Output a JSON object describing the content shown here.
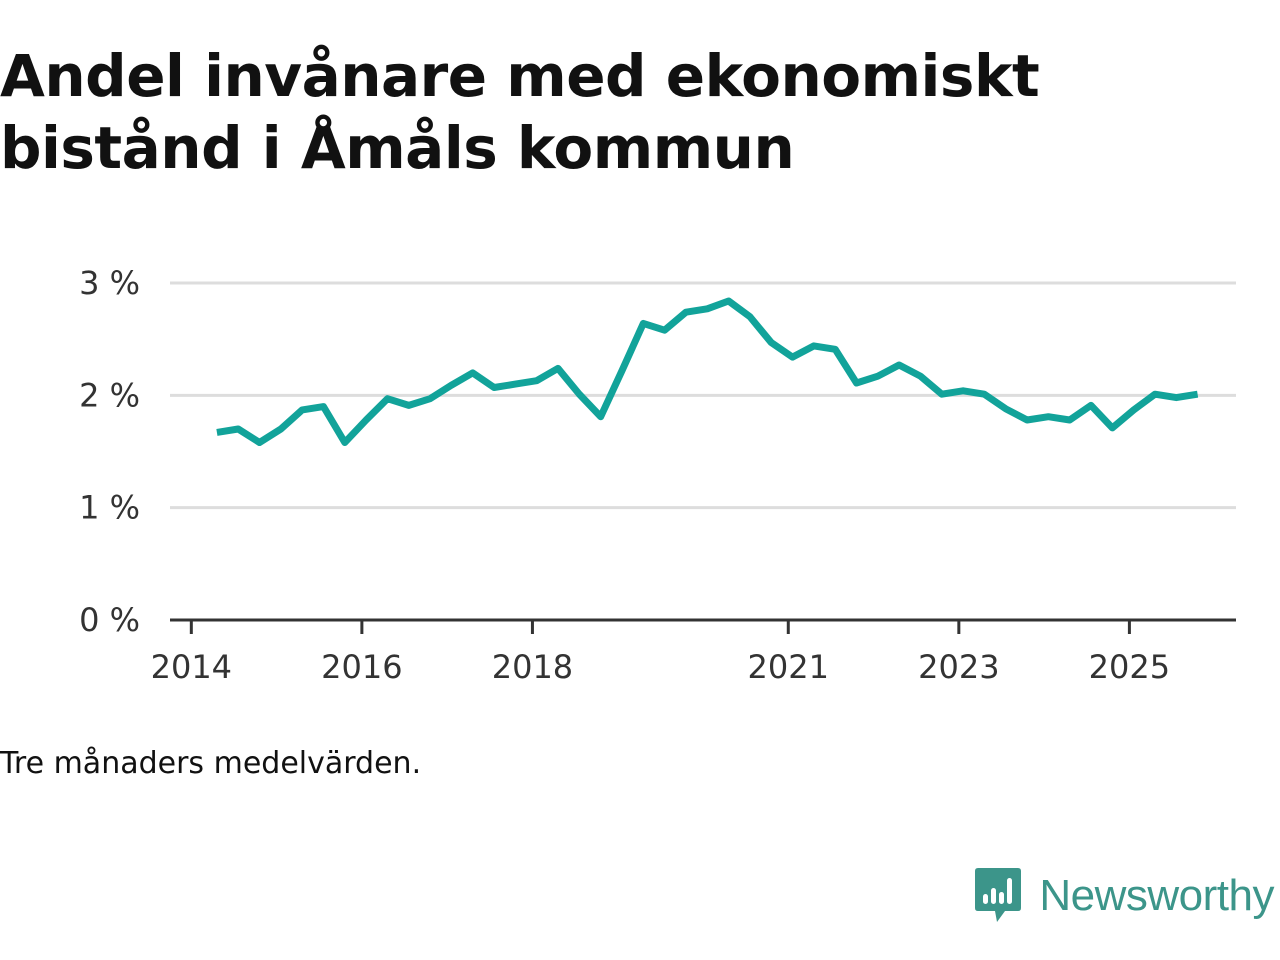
{
  "title": "Andel invånare med ekonomiskt bistånd i Åmåls kommun",
  "note": "Tre månaders medelvärden.",
  "brand": {
    "name": "Newsworthy",
    "icon": "newsworthy-logo-icon",
    "color": "#3c958a"
  },
  "colors": {
    "line": "#12a39a",
    "grid": "#dddddd",
    "axis": "#333333"
  },
  "chart_data": {
    "type": "line",
    "title": "Andel invånare med ekonomiskt bistånd i Åmåls kommun",
    "xlabel": "",
    "ylabel": "",
    "y_unit": "%",
    "ylim": [
      0,
      3
    ],
    "yticks": [
      {
        "value": 0,
        "label": "0 %"
      },
      {
        "value": 1,
        "label": "1 %"
      },
      {
        "value": 2,
        "label": "2 %"
      },
      {
        "value": 3,
        "label": "3 %"
      }
    ],
    "xlim": [
      2013.75,
      2026.25
    ],
    "xticks": [
      {
        "value": 2014,
        "label": "2014"
      },
      {
        "value": 2016,
        "label": "2016"
      },
      {
        "value": 2018,
        "label": "2018"
      },
      {
        "value": 2021,
        "label": "2021"
      },
      {
        "value": 2023,
        "label": "2023"
      },
      {
        "value": 2025,
        "label": "2025"
      }
    ],
    "grid": true,
    "series": [
      {
        "name": "Andel invånare med ekonomiskt bistånd",
        "x": [
          2014.3,
          2014.55,
          2014.8,
          2015.05,
          2015.3,
          2015.55,
          2015.8,
          2016.05,
          2016.3,
          2016.55,
          2016.8,
          2017.05,
          2017.3,
          2017.55,
          2017.8,
          2018.05,
          2018.3,
          2018.55,
          2018.8,
          2019.05,
          2019.3,
          2019.55,
          2019.8,
          2020.05,
          2020.3,
          2020.55,
          2020.8,
          2021.05,
          2021.3,
          2021.55,
          2021.8,
          2022.05,
          2022.3,
          2022.55,
          2022.8,
          2023.05,
          2023.3,
          2023.55,
          2023.8,
          2024.05,
          2024.3,
          2024.55,
          2024.8,
          2025.05,
          2025.3,
          2025.55,
          2025.8
        ],
        "values": [
          1.67,
          1.7,
          1.58,
          1.7,
          1.87,
          1.9,
          1.58,
          1.78,
          1.97,
          1.91,
          1.97,
          2.09,
          2.2,
          2.07,
          2.1,
          2.13,
          2.24,
          2.01,
          1.81,
          2.22,
          2.64,
          2.58,
          2.74,
          2.77,
          2.84,
          2.7,
          2.47,
          2.34,
          2.44,
          2.41,
          2.11,
          2.17,
          2.27,
          2.17,
          2.01,
          2.04,
          2.01,
          1.88,
          1.78,
          1.81,
          1.78,
          1.91,
          1.71,
          1.87,
          2.01,
          1.98,
          2.01
        ]
      }
    ]
  }
}
